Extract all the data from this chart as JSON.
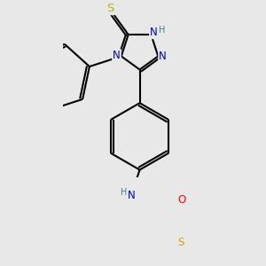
{
  "background_color": "#e8e8e8",
  "atom_colors": {
    "N": "#0000cc",
    "O": "#ff0000",
    "S_thioxo": "#b8b800",
    "S_thiophene": "#ccaa00",
    "C": "#000000",
    "H": "#408080"
  },
  "bond_color": "#000000",
  "bond_width": 1.5,
  "figsize": [
    3.0,
    3.0
  ],
  "dpi": 100
}
